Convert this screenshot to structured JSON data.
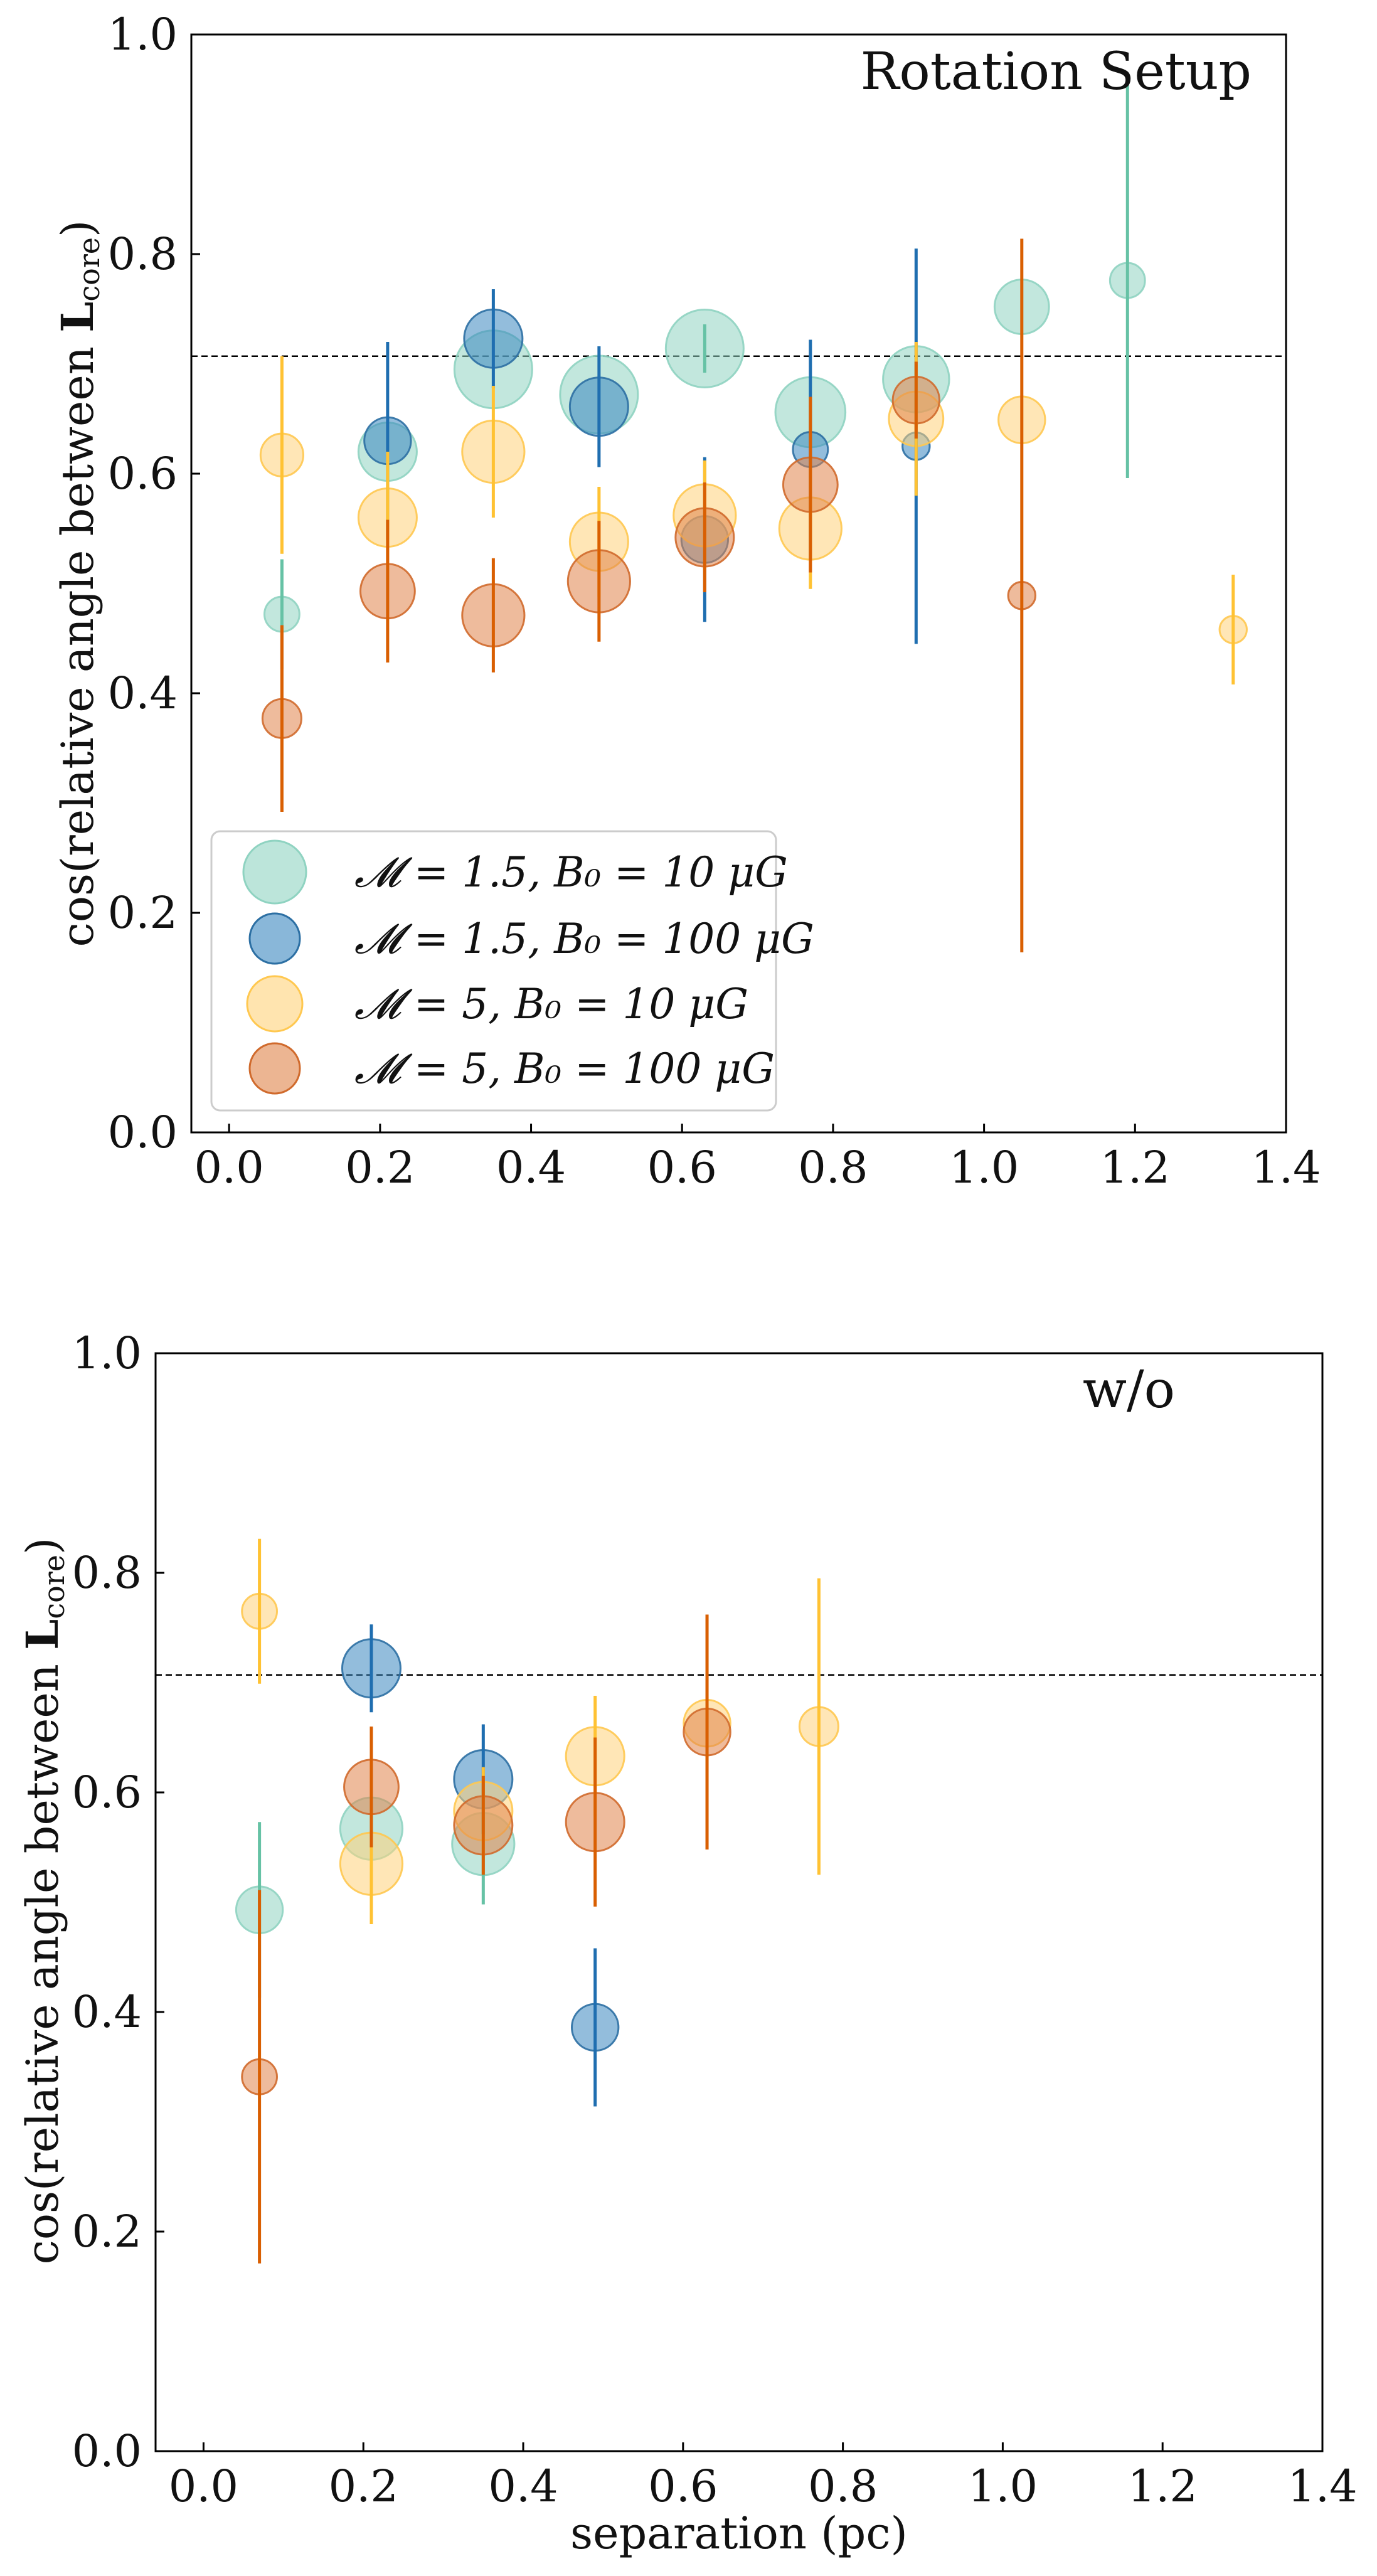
{
  "figure": {
    "xlabel": "separation (pc)"
  },
  "series_legend": [
    {
      "key": "M1.5_B10",
      "text": "𝓜 = 1.5, B₀ = 10 μG",
      "color": "#8fd3c1",
      "edge": "#8fd3c1",
      "err": "#66c2a5"
    },
    {
      "key": "M1.5_B100",
      "text": "𝓜 = 1.5, B₀ = 100 μG",
      "color": "#3a87c0",
      "edge": "#2c6fa3",
      "err": "#1f6eb0"
    },
    {
      "key": "M5_B10",
      "text": "𝓜 = 5, B₀ = 10 μG",
      "color": "#ffd27a",
      "edge": "#ffc850",
      "err": "#ffc233"
    },
    {
      "key": "M5_B100",
      "text": "𝓜 = 5, B₀ = 100 μG",
      "color": "#e0844a",
      "edge": "#d06a2c",
      "err": "#d95f02"
    }
  ],
  "chart_data": [
    {
      "type": "scatter",
      "title": "Rotation Setup",
      "xlabel": "",
      "ylabel": "cos(relative angle between L_core)",
      "xlim": [
        -0.05,
        1.4
      ],
      "ylim": [
        0.0,
        1.0
      ],
      "xticks": [
        "0.0",
        "0.2",
        "0.4",
        "0.6",
        "0.8",
        "1.0",
        "1.2",
        "1.4"
      ],
      "yticks": [
        "0.0",
        "0.2",
        "0.4",
        "0.6",
        "0.8",
        "1.0"
      ],
      "reference_line": 0.707,
      "legend_location": "lower-left",
      "series": [
        {
          "key": "M1.5_B10",
          "name": "𝓜 = 1.5, B₀ = 10 μG",
          "points": [
            {
              "x": 0.07,
              "y": 0.472,
              "err": 0.05,
              "size": 0.45
            },
            {
              "x": 0.21,
              "y": 0.62,
              "err": 0.0,
              "size": 0.75
            },
            {
              "x": 0.35,
              "y": 0.695,
              "err": 0.0,
              "size": 1.0
            },
            {
              "x": 0.49,
              "y": 0.672,
              "err": 0.0,
              "size": 1.0
            },
            {
              "x": 0.63,
              "y": 0.714,
              "err": 0.022,
              "size": 1.0
            },
            {
              "x": 0.77,
              "y": 0.656,
              "err": 0.0,
              "size": 0.9
            },
            {
              "x": 0.91,
              "y": 0.686,
              "err": 0.0,
              "size": 0.85
            },
            {
              "x": 1.05,
              "y": 0.752,
              "err": 0.0,
              "size": 0.7
            },
            {
              "x": 1.19,
              "y": 0.776,
              "err": 0.18,
              "size": 0.45
            }
          ]
        },
        {
          "key": "M1.5_B100",
          "name": "𝓜 = 1.5, B₀ = 100 μG",
          "points": [
            {
              "x": 0.21,
              "y": 0.63,
              "err": 0.09,
              "size": 0.6
            },
            {
              "x": 0.35,
              "y": 0.723,
              "err": 0.045,
              "size": 0.75
            },
            {
              "x": 0.49,
              "y": 0.661,
              "err": 0.055,
              "size": 0.75
            },
            {
              "x": 0.63,
              "y": 0.54,
              "err": 0.075,
              "size": 0.6
            },
            {
              "x": 0.77,
              "y": 0.622,
              "err": 0.1,
              "size": 0.45
            },
            {
              "x": 0.91,
              "y": 0.625,
              "err": 0.18,
              "size": 0.35
            }
          ]
        },
        {
          "key": "M5_B10",
          "name": "𝓜 = 5, B₀ = 10 μG",
          "points": [
            {
              "x": 0.07,
              "y": 0.617,
              "err": 0.09,
              "size": 0.55
            },
            {
              "x": 0.21,
              "y": 0.56,
              "err": 0.06,
              "size": 0.75
            },
            {
              "x": 0.35,
              "y": 0.62,
              "err": 0.06,
              "size": 0.8
            },
            {
              "x": 0.49,
              "y": 0.538,
              "err": 0.05,
              "size": 0.75
            },
            {
              "x": 0.63,
              "y": 0.562,
              "err": 0.05,
              "size": 0.8
            },
            {
              "x": 0.77,
              "y": 0.55,
              "err": 0.055,
              "size": 0.8
            },
            {
              "x": 0.91,
              "y": 0.65,
              "err": 0.07,
              "size": 0.7
            },
            {
              "x": 1.05,
              "y": 0.649,
              "err": 0.0,
              "size": 0.6
            },
            {
              "x": 1.33,
              "y": 0.458,
              "err": 0.05,
              "size": 0.35
            }
          ]
        },
        {
          "key": "M5_B100",
          "name": "𝓜 = 5, B₀ = 100 μG",
          "points": [
            {
              "x": 0.07,
              "y": 0.377,
              "err": 0.085,
              "size": 0.5
            },
            {
              "x": 0.21,
              "y": 0.493,
              "err": 0.065,
              "size": 0.7
            },
            {
              "x": 0.35,
              "y": 0.471,
              "err": 0.052,
              "size": 0.8
            },
            {
              "x": 0.49,
              "y": 0.502,
              "err": 0.055,
              "size": 0.8
            },
            {
              "x": 0.63,
              "y": 0.542,
              "err": 0.05,
              "size": 0.75
            },
            {
              "x": 0.77,
              "y": 0.59,
              "err": 0.08,
              "size": 0.7
            },
            {
              "x": 0.91,
              "y": 0.667,
              "err": 0.035,
              "size": 0.6
            },
            {
              "x": 1.05,
              "y": 0.489,
              "err": 0.325,
              "size": 0.35
            }
          ]
        }
      ]
    },
    {
      "type": "scatter",
      "title": "w/o",
      "xlabel": "separation (pc)",
      "ylabel": "cos(relative angle between L_core)",
      "xlim": [
        -0.06,
        1.4
      ],
      "ylim": [
        0.0,
        1.0
      ],
      "xticks": [
        "0.0",
        "0.2",
        "0.4",
        "0.6",
        "0.8",
        "1.0",
        "1.2",
        "1.4"
      ],
      "yticks": [
        "0.0",
        "0.2",
        "0.4",
        "0.6",
        "0.8",
        "1.0"
      ],
      "reference_line": 0.707,
      "series": [
        {
          "key": "M1.5_B10",
          "name": "𝓜 = 1.5, B₀ = 10 μG",
          "points": [
            {
              "x": 0.07,
              "y": 0.493,
              "err": 0.08,
              "size": 0.6
            },
            {
              "x": 0.21,
              "y": 0.567,
              "err": 0.0,
              "size": 0.8
            },
            {
              "x": 0.35,
              "y": 0.553,
              "err": 0.055,
              "size": 0.8
            }
          ]
        },
        {
          "key": "M1.5_B100",
          "name": "𝓜 = 1.5, B₀ = 100 μG",
          "points": [
            {
              "x": 0.21,
              "y": 0.713,
              "err": 0.04,
              "size": 0.75
            },
            {
              "x": 0.35,
              "y": 0.612,
              "err": 0.05,
              "size": 0.75
            },
            {
              "x": 0.49,
              "y": 0.386,
              "err": 0.072,
              "size": 0.6
            }
          ]
        },
        {
          "key": "M5_B10",
          "name": "𝓜 = 5, B₀ = 10 μG",
          "points": [
            {
              "x": 0.07,
              "y": 0.765,
              "err": 0.066,
              "size": 0.45
            },
            {
              "x": 0.21,
              "y": 0.535,
              "err": 0.055,
              "size": 0.8
            },
            {
              "x": 0.35,
              "y": 0.583,
              "err": 0.04,
              "size": 0.75
            },
            {
              "x": 0.49,
              "y": 0.633,
              "err": 0.055,
              "size": 0.75
            },
            {
              "x": 0.63,
              "y": 0.663,
              "err": 0.0,
              "size": 0.6
            },
            {
              "x": 0.77,
              "y": 0.66,
              "err": 0.135,
              "size": 0.5
            }
          ]
        },
        {
          "key": "M5_B100",
          "name": "𝓜 = 5, B₀ = 100 μG",
          "points": [
            {
              "x": 0.07,
              "y": 0.341,
              "err": 0.17,
              "size": 0.45
            },
            {
              "x": 0.21,
              "y": 0.605,
              "err": 0.055,
              "size": 0.7
            },
            {
              "x": 0.35,
              "y": 0.57,
              "err": 0.045,
              "size": 0.75
            },
            {
              "x": 0.49,
              "y": 0.573,
              "err": 0.077,
              "size": 0.75
            },
            {
              "x": 0.63,
              "y": 0.655,
              "err": 0.107,
              "size": 0.6
            }
          ]
        }
      ]
    }
  ]
}
